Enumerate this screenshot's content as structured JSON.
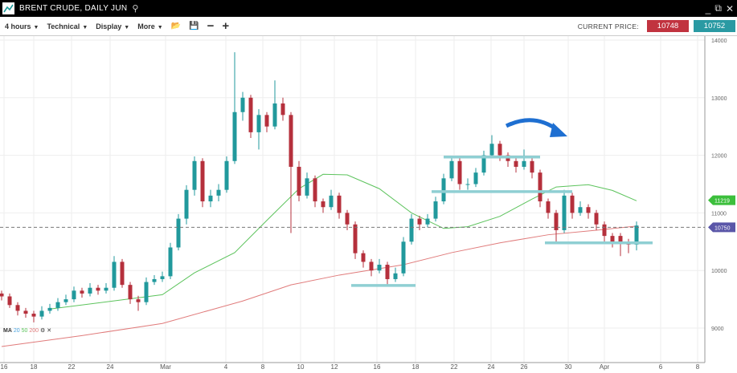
{
  "window": {
    "title": "BRENT CRUDE, DAILY JUN",
    "icons": [
      "chart-logo-icon",
      "search-icon",
      "minimize-icon",
      "popout-icon",
      "close-icon"
    ]
  },
  "toolbar": {
    "interval": "4 hours",
    "technical": "Technical",
    "display": "Display",
    "more": "More",
    "current_price_label": "CURRENT PRICE:",
    "sell_price": "10748",
    "buy_price": "10752",
    "sell_color": "#c1333f",
    "buy_color": "#2a9aa3"
  },
  "indicator": {
    "label": "MA",
    "periods": [
      "20",
      "50",
      "200"
    ],
    "colors": [
      "#4aa3df",
      "#5cc35c",
      "#e07b7b"
    ]
  },
  "chart_data": {
    "type": "candlestick",
    "y_ticks": [
      9000,
      10000,
      11000,
      12000,
      13000,
      14000
    ],
    "ylim": [
      8700,
      14000
    ],
    "x_tick_labels": [
      "16",
      "18",
      "22",
      "24",
      "Mar",
      "4",
      "8",
      "10",
      "12",
      "16",
      "18",
      "22",
      "24",
      "26",
      "30",
      "Apr",
      "6",
      "8"
    ],
    "up_color": "#21999c",
    "down_color": "#b5303c",
    "candles": [
      [
        9600,
        9650,
        9480,
        9550
      ],
      [
        9550,
        9600,
        9350,
        9400
      ],
      [
        9400,
        9450,
        9220,
        9300
      ],
      [
        9300,
        9350,
        9180,
        9250
      ],
      [
        9250,
        9300,
        9100,
        9200
      ],
      [
        9200,
        9380,
        9150,
        9300
      ],
      [
        9300,
        9420,
        9250,
        9350
      ],
      [
        9350,
        9520,
        9300,
        9450
      ],
      [
        9450,
        9580,
        9400,
        9500
      ],
      [
        9500,
        9720,
        9450,
        9650
      ],
      [
        9650,
        9700,
        9530,
        9600
      ],
      [
        9600,
        9780,
        9550,
        9700
      ],
      [
        9700,
        9750,
        9580,
        9650
      ],
      [
        9650,
        9780,
        9600,
        9700
      ],
      [
        9700,
        10250,
        9650,
        10150
      ],
      [
        10150,
        10200,
        9700,
        9750
      ],
      [
        9750,
        9800,
        9420,
        9500
      ],
      [
        9500,
        9560,
        9300,
        9450
      ],
      [
        9450,
        9880,
        9400,
        9800
      ],
      [
        9800,
        9920,
        9750,
        9850
      ],
      [
        9850,
        9980,
        9800,
        9900
      ],
      [
        9900,
        10480,
        9850,
        10400
      ],
      [
        10400,
        10980,
        10350,
        10900
      ],
      [
        10900,
        11480,
        10800,
        11400
      ],
      [
        11400,
        11980,
        11300,
        11900
      ],
      [
        11900,
        11950,
        11100,
        11200
      ],
      [
        11200,
        11400,
        11100,
        11300
      ],
      [
        11300,
        11500,
        11200,
        11400
      ],
      [
        11400,
        11980,
        11350,
        11900
      ],
      [
        11900,
        13790,
        11850,
        12750
      ],
      [
        12750,
        13100,
        12600,
        13000
      ],
      [
        13000,
        13050,
        12300,
        12400
      ],
      [
        12400,
        12800,
        12100,
        12700
      ],
      [
        12700,
        12750,
        12400,
        12500
      ],
      [
        12500,
        13300,
        12450,
        12900
      ],
      [
        12900,
        13000,
        12600,
        12700
      ],
      [
        12700,
        12750,
        10650,
        11800
      ],
      [
        11800,
        11900,
        11200,
        11300
      ],
      [
        11300,
        11700,
        11250,
        11600
      ],
      [
        11600,
        11650,
        11100,
        11200
      ],
      [
        11200,
        11250,
        11000,
        11100
      ],
      [
        11100,
        11400,
        11050,
        11300
      ],
      [
        11300,
        11350,
        10900,
        11000
      ],
      [
        11000,
        11050,
        10700,
        10800
      ],
      [
        10800,
        10850,
        10200,
        10300
      ],
      [
        10300,
        10350,
        10050,
        10150
      ],
      [
        10150,
        10200,
        9900,
        10000
      ],
      [
        10000,
        10200,
        9950,
        10100
      ],
      [
        10100,
        10150,
        9750,
        9850
      ],
      [
        9850,
        10050,
        9800,
        9950
      ],
      [
        9950,
        10580,
        9900,
        10500
      ],
      [
        10500,
        10980,
        10450,
        10900
      ],
      [
        10900,
        10950,
        10700,
        10800
      ],
      [
        10800,
        10980,
        10750,
        10900
      ],
      [
        10900,
        11280,
        10850,
        11200
      ],
      [
        11200,
        11680,
        11150,
        11600
      ],
      [
        11600,
        11980,
        11550,
        11900
      ],
      [
        11900,
        11950,
        11400,
        11500
      ],
      [
        11500,
        11600,
        11400,
        11500
      ],
      [
        11500,
        11780,
        11450,
        11700
      ],
      [
        11700,
        12080,
        11650,
        12000
      ],
      [
        12000,
        12350,
        11950,
        12200
      ],
      [
        12200,
        12250,
        11900,
        12000
      ],
      [
        12000,
        12050,
        11800,
        11900
      ],
      [
        11900,
        11950,
        11700,
        11800
      ],
      [
        11800,
        12100,
        11750,
        11900
      ],
      [
        11900,
        11950,
        11600,
        11700
      ],
      [
        11700,
        11750,
        11100,
        11200
      ],
      [
        11200,
        11250,
        10900,
        11000
      ],
      [
        11000,
        11050,
        10500,
        10700
      ],
      [
        10700,
        11400,
        10650,
        11300
      ],
      [
        11300,
        11350,
        10900,
        11000
      ],
      [
        11000,
        11200,
        10950,
        11100
      ],
      [
        11100,
        11150,
        10900,
        11000
      ],
      [
        11000,
        11050,
        10700,
        10800
      ],
      [
        10800,
        10850,
        10500,
        10600
      ],
      [
        10600,
        10650,
        10400,
        10500
      ],
      [
        10600,
        10650,
        10250,
        10500
      ],
      [
        10500,
        10550,
        10300,
        10450
      ],
      [
        10450,
        10850,
        10350,
        10780
      ]
    ],
    "ma50": [
      [
        6,
        9330
      ],
      [
        20,
        9580
      ],
      [
        24,
        9960
      ],
      [
        29,
        10310
      ],
      [
        33,
        10870
      ],
      [
        37,
        11420
      ],
      [
        40,
        11670
      ],
      [
        43,
        11660
      ],
      [
        47,
        11420
      ],
      [
        51,
        11000
      ],
      [
        55,
        10730
      ],
      [
        58,
        10760
      ],
      [
        62,
        10940
      ],
      [
        66,
        11240
      ],
      [
        69,
        11450
      ],
      [
        73,
        11490
      ],
      [
        76,
        11390
      ],
      [
        79,
        11210
      ]
    ],
    "ma200": [
      [
        0,
        8680
      ],
      [
        10,
        8870
      ],
      [
        20,
        9080
      ],
      [
        30,
        9470
      ],
      [
        36,
        9750
      ],
      [
        42,
        9920
      ],
      [
        50,
        10100
      ],
      [
        56,
        10310
      ],
      [
        62,
        10480
      ],
      [
        68,
        10620
      ],
      [
        74,
        10700
      ],
      [
        79,
        10770
      ]
    ],
    "support_lines": [
      {
        "from": 43.5,
        "to": 51.5,
        "price": 9740
      },
      {
        "from": 55,
        "to": 67,
        "price": 11970
      },
      {
        "from": 53.5,
        "to": 71,
        "price": 11370
      },
      {
        "from": 67.6,
        "to": 81,
        "price": 10480
      }
    ],
    "current_price_line": 10750,
    "price_tags": [
      {
        "value": "11219",
        "price": 11219,
        "color": "#3cbf3c"
      },
      {
        "value": "10750",
        "price": 10750,
        "color": "#5a56a8"
      }
    ]
  }
}
